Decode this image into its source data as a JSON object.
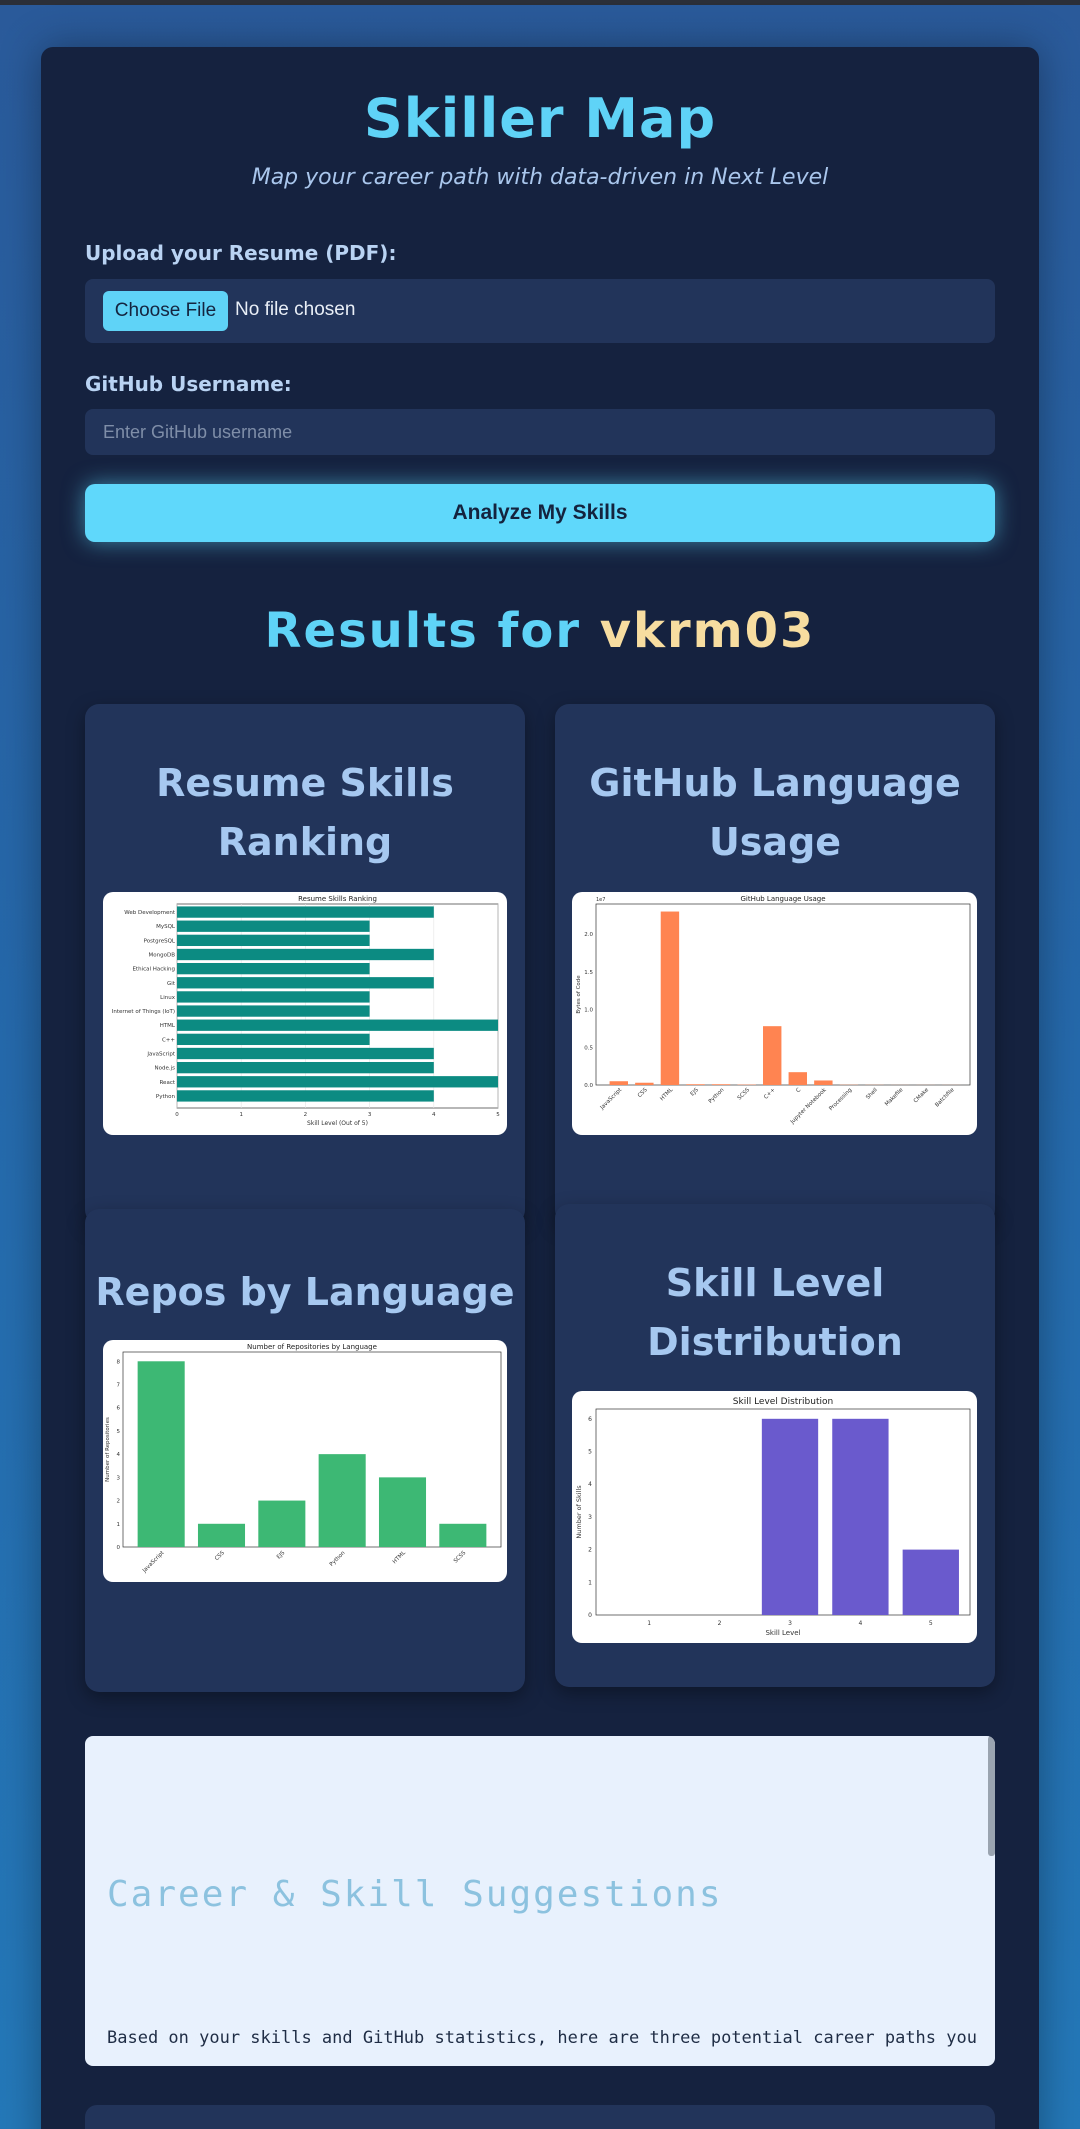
{
  "app": {
    "title": "Skiller Map",
    "subtitle": "Map your career path with data-driven in Next Level"
  },
  "form": {
    "resume_label": "Upload your Resume (PDF):",
    "choose_file_label": "Choose File",
    "no_file_text": "No file chosen",
    "github_label": "GitHub Username:",
    "github_placeholder": "Enter GitHub username",
    "github_value": "",
    "analyze_label": "Analyze My Skills"
  },
  "results": {
    "prefix": "Results for",
    "username": "vkrm03"
  },
  "cards": {
    "resume_skills": {
      "title": "Resume Skills Ranking"
    },
    "github_usage": {
      "title": "GitHub Language Usage"
    },
    "repos_by_language": {
      "title": "Repos by Language"
    },
    "skill_distribution": {
      "title": "Skill Level Distribution"
    }
  },
  "suggestions": {
    "title": "Career & Skill Suggestions",
    "text": "Based on your skills and GitHub statistics, here are three potential career paths you"
  },
  "colors": {
    "teal_bar": "#0c8b82",
    "orange_bar": "#ff8451",
    "green_bar": "#3db874",
    "purple_bar": "#6a5acd"
  },
  "chart_data": [
    {
      "type": "bar",
      "orientation": "horizontal",
      "title": "Resume Skills Ranking",
      "xlabel": "Skill Level (Out of 5)",
      "ylabel": "",
      "xlim": [
        0,
        5
      ],
      "xticks": [
        "0",
        "1",
        "2",
        "3",
        "4",
        "5"
      ],
      "categories": [
        "Python",
        "React",
        "Node.js",
        "JavaScript",
        "C++",
        "HTML",
        "Internet of Things (IoT)",
        "Linux",
        "Git",
        "Ethical Hacking",
        "MongoDB",
        "PostgreSQL",
        "MySQL",
        "Web Development"
      ],
      "values": [
        4,
        5,
        4,
        4,
        3,
        5,
        3,
        3,
        4,
        3,
        4,
        3,
        3,
        4
      ]
    },
    {
      "type": "bar",
      "title": "GitHub Language Usage",
      "ylabel": "Bytes of Code",
      "scale_label": "1e7",
      "ylim": [
        0,
        2.4
      ],
      "yticks": [
        "0.0",
        "0.5",
        "1.0",
        "1.5",
        "2.0"
      ],
      "categories": [
        "JavaScript",
        "CSS",
        "HTML",
        "EJS",
        "Python",
        "SCSS",
        "C++",
        "C",
        "Jupyter Notebook",
        "Processing",
        "Shell",
        "Makefile",
        "CMake",
        "Batchfile"
      ],
      "values": [
        0.05,
        0.03,
        2.3,
        0.01,
        0.01,
        0.005,
        0.78,
        0.17,
        0.06,
        0.003,
        0.002,
        0.001,
        0.001,
        0.001
      ]
    },
    {
      "type": "bar",
      "title": "Number of Repositories by Language",
      "ylabel": "Number of Repositories",
      "ylim": [
        0,
        8.4
      ],
      "yticks": [
        "0",
        "1",
        "2",
        "3",
        "4",
        "5",
        "6",
        "7",
        "8"
      ],
      "categories": [
        "JavaScript",
        "CSS",
        "EJS",
        "Python",
        "HTML",
        "SCSS"
      ],
      "values": [
        8,
        1,
        2,
        4,
        3,
        1
      ]
    },
    {
      "type": "bar",
      "title": "Skill Level Distribution",
      "xlabel": "Skill Level",
      "ylabel": "Number of Skills",
      "ylim": [
        0,
        6.3
      ],
      "yticks": [
        "0",
        "1",
        "2",
        "3",
        "4",
        "5",
        "6"
      ],
      "categories": [
        "1",
        "2",
        "3",
        "4",
        "5"
      ],
      "values": [
        0,
        0,
        6,
        6,
        2
      ]
    }
  ]
}
